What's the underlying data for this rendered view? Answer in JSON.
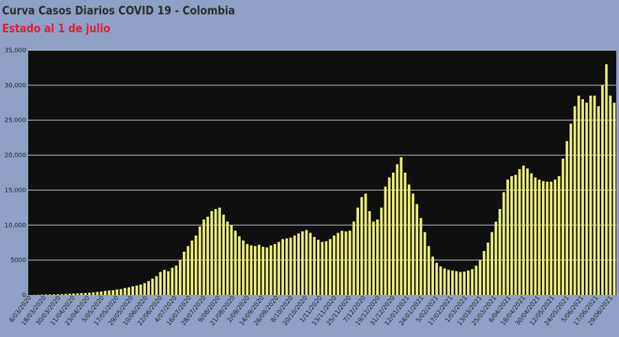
{
  "header": {
    "title": "Curva Casos Diarios COVID 19 - Colombia",
    "subtitle": "Estado al 1 de julio"
  },
  "colors": {
    "page_background": "#8ea0c6",
    "plot_background": "#0f0f0f",
    "bar": "#eef07a",
    "grid": "#d8d8d8",
    "subtitle": "#e0202a"
  },
  "chart_data": {
    "type": "bar",
    "title": "Curva Casos Diarios COVID 19 - Colombia",
    "subtitle": "Estado al 1 de julio",
    "xlabel": "",
    "ylabel": "",
    "ylim": [
      0,
      35000
    ],
    "grid": true,
    "legend": "none",
    "y_tick_labels": [
      "0",
      "5000",
      "10,000",
      "15,000",
      "20,000",
      "25,000",
      "30,000",
      "35,000"
    ],
    "x_tick_labels": [
      "6/03/2020",
      "18/03/2020",
      "30/03/2020",
      "11/04/2020",
      "23/04/2020",
      "5/05/2020",
      "17/05/2020",
      "29/05/2020",
      "10/06/2020",
      "22/06/2020",
      "4/07/2020",
      "16/07/2020",
      "28/07/2020",
      "9/08/2020",
      "21/08/2020",
      "2/09/2020",
      "14/09/2020",
      "26/09/2020",
      "8/10/2020",
      "20/10/2020",
      "1/11/2020",
      "13/11/2020",
      "25/11/2020",
      "7/12/2020",
      "19/12/2020",
      "31/12/2020",
      "12/01/2021",
      "24/01/2021",
      "5/02/2021",
      "17/02/2021",
      "1/03/2021",
      "13/03/2021",
      "25/03/2021",
      "6/04/2021",
      "18/04/2021",
      "30/04/2021",
      "12/05/2021",
      "24/05/2021",
      "5/06/2021",
      "17/06/2021",
      "29/06/2021"
    ],
    "daily_values_in_order_from_6_03_2020": [
      5,
      20,
      40,
      60,
      80,
      90,
      100,
      110,
      130,
      160,
      200,
      220,
      250,
      280,
      300,
      330,
      380,
      450,
      500,
      600,
      650,
      700,
      800,
      850,
      1000,
      1100,
      1250,
      1350,
      1500,
      1700,
      2000,
      2350,
      2700,
      3300,
      3600,
      3400,
      3900,
      4200,
      5000,
      6200,
      7000,
      7800,
      8500,
      9800,
      10800,
      11200,
      12000,
      12300,
      12500,
      11500,
      10500,
      10000,
      9200,
      8400,
      7800,
      7300,
      7100,
      7000,
      7200,
      6900,
      6800,
      7100,
      7300,
      7600,
      8000,
      8100,
      8200,
      8500,
      8800,
      9100,
      9300,
      8900,
      8300,
      7900,
      7600,
      7700,
      8000,
      8500,
      8900,
      9200,
      9100,
      9200,
      10500,
      12500,
      14000,
      14500,
      12000,
      10500,
      10800,
      12500,
      15500,
      16800,
      17500,
      18700,
      19700,
      17500,
      15800,
      14500,
      13000,
      11000,
      9000,
      7000,
      5500,
      4600,
      4100,
      3800,
      3600,
      3500,
      3400,
      3300,
      3350,
      3500,
      3700,
      4200,
      5000,
      6300,
      7500,
      9000,
      10500,
      12300,
      14700,
      16500,
      17000,
      17200,
      18000,
      18500,
      18100,
      17400,
      16800,
      16500,
      16300,
      16200,
      16200,
      16500,
      17000,
      19500,
      22000,
      24500,
      27000,
      28500,
      28000,
      27500,
      28500,
      28500,
      27000,
      30000,
      33000,
      28500,
      27500
    ]
  }
}
